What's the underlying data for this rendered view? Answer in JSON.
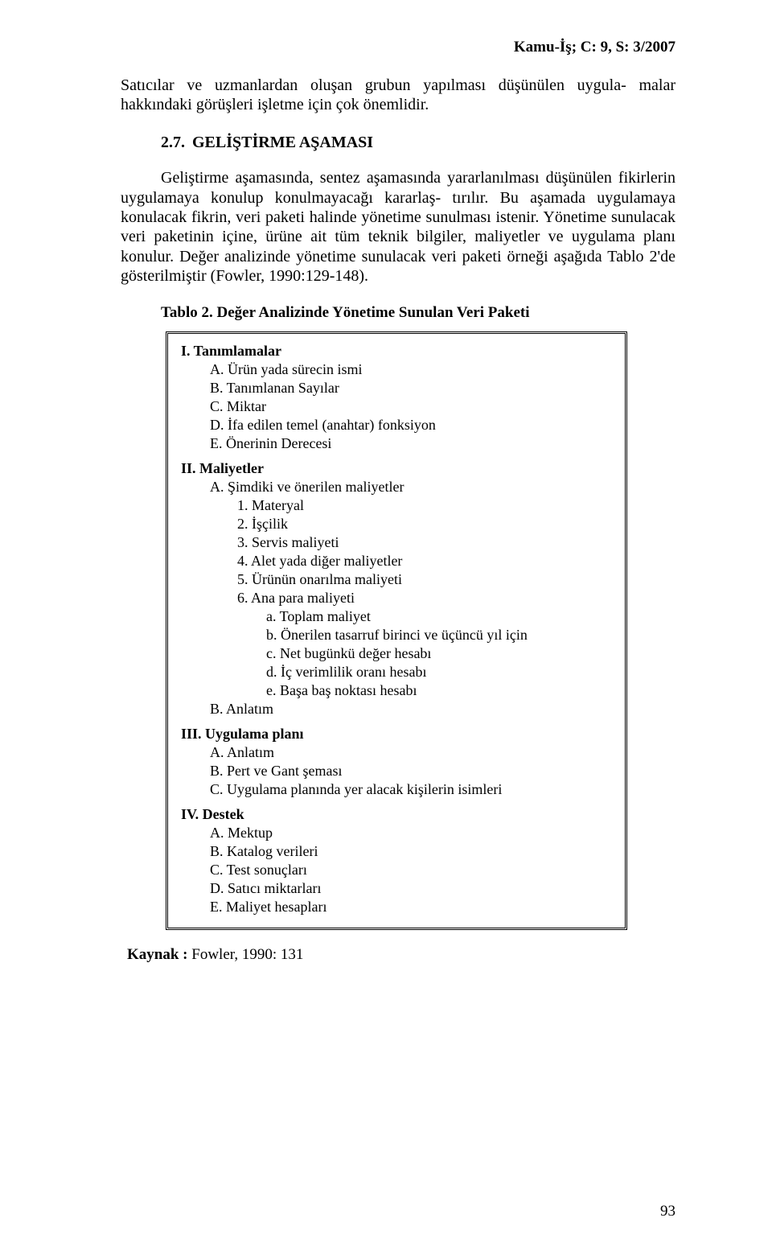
{
  "running_head": "Kamu-İş; C: 9, S: 3/2007",
  "para1": "Satıcılar ve uzmanlardan oluşan grubun yapılması düşünülen uygula- malar hakkındaki görüşleri işletme için çok önemlidir.",
  "sec_num": "2.7.",
  "sec_title": "GELİŞTİRME AŞAMASI",
  "para2": "Geliştirme aşamasında, sentez aşamasında yararlanılması düşünülen fikirlerin uygulamaya konulup konulmayacağı kararlaş- tırılır. Bu aşamada uygulamaya konulacak fikrin, veri paketi halinde yönetime sunulması istenir. Yönetime sunulacak veri paketinin içine, ürüne ait tüm teknik bilgiler, maliyetler ve uygulama planı konulur. Değer analizinde yönetime sunulacak veri paketi örneği aşağıda Tablo 2'de gösterilmiştir (Fowler, 1990:129-148).",
  "table_caption": "Tablo 2. Değer Analizinde Yönetime Sunulan Veri Paketi",
  "outline": {
    "g1_title": "I. Tanımlamalar",
    "g1": {
      "a": "A.     Ürün yada sürecin ismi",
      "b": "B.     Tanımlanan Sayılar",
      "c": "C.     Miktar",
      "d": "D.     İfa edilen  temel (anahtar) fonksiyon",
      "e": "E.     Önerinin Derecesi"
    },
    "g2_title": "II. Maliyetler",
    "g2": {
      "a": "A. Şimdiki ve önerilen maliyetler",
      "n1": "1.   Materyal",
      "n2": "2.   İşçilik",
      "n3": "3.   Servis maliyeti",
      "n4": "4.   Alet yada diğer maliyetler",
      "n5": "5.   Ürünün onarılma maliyeti",
      "n6": "6.   Ana para maliyeti",
      "sa": "a. Toplam maliyet",
      "sb": "b. Önerilen tasarruf birinci ve üçüncü yıl için",
      "sc": "c. Net bugünkü değer hesabı",
      "sd": "d. İç verimlilik oranı hesabı",
      "se": "e. Başa baş noktası hesabı",
      "b": "B. Anlatım"
    },
    "g3_title": "III. Uygulama planı",
    "g3": {
      "a": "A. Anlatım",
      "b": "B. Pert ve Gant şeması",
      "c": "C. Uygulama planında yer alacak kişilerin isimleri"
    },
    "g4_title": "IV. Destek",
    "g4": {
      "a": "A. Mektup",
      "b": "B. Katalog verileri",
      "c": "C. Test sonuçları",
      "d": "D. Satıcı miktarları",
      "e": "E. Maliyet hesapları"
    }
  },
  "source_label": "Kaynak :",
  "source_text": " Fowler, 1990: 131",
  "page_number": "93"
}
